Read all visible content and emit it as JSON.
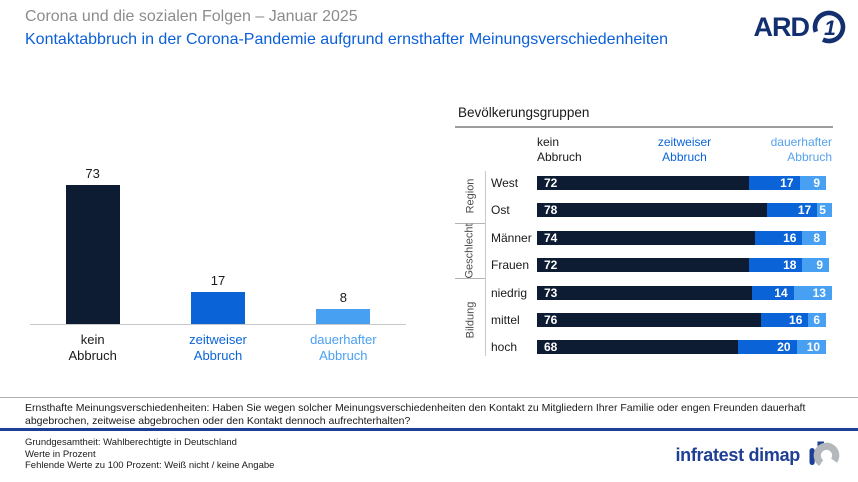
{
  "header": {
    "kicker": "Corona und die sozialen Folgen – Januar 2025",
    "title": "Kontaktabbruch in der Corona-Pandemie aufgrund ernsthafter Meinungsverschiedenheiten",
    "ard_logo_text": "ARD",
    "ard_logo_digit": "1"
  },
  "colors": {
    "kicker_gray": "#8c8c8c",
    "title_blue": "#0b5fd9",
    "segments": [
      "#0d1b33",
      "#0a64d8",
      "#47a0f2"
    ],
    "label_colors": [
      "#1a1a1a",
      "#0a64d8",
      "#4aa0f2"
    ],
    "header_colors": [
      "#1a1a1a",
      "#0a64d8",
      "#55a2ee"
    ],
    "brand_navy": "#1e3f94",
    "ard_navy": "#12306f"
  },
  "left_chart": {
    "bars": [
      {
        "label": "kein\nAbbruch",
        "value": 73
      },
      {
        "label": "zeitweiser\nAbbruch",
        "value": 17
      },
      {
        "label": "dauerhafter\nAbbruch",
        "value": 8
      }
    ]
  },
  "table": {
    "title": "Bevölkerungsgruppen",
    "col_headers": [
      "kein\nAbbruch",
      "zeitweiser\nAbbruch",
      "dauerhafter\nAbbruch"
    ],
    "groups": [
      {
        "label": "Region",
        "rows": [
          {
            "label": "West",
            "values": [
              72,
              17,
              9
            ]
          },
          {
            "label": "Ost",
            "values": [
              78,
              17,
              5
            ]
          }
        ]
      },
      {
        "label": "Geschlecht",
        "rows": [
          {
            "label": "Männer",
            "values": [
              74,
              16,
              8
            ]
          },
          {
            "label": "Frauen",
            "values": [
              72,
              18,
              9
            ]
          }
        ]
      },
      {
        "label": "Bildung",
        "rows": [
          {
            "label": "niedrig",
            "values": [
              73,
              14,
              13
            ]
          },
          {
            "label": "mittel",
            "values": [
              76,
              16,
              6
            ]
          },
          {
            "label": "hoch",
            "values": [
              68,
              20,
              10
            ]
          }
        ]
      }
    ]
  },
  "footnote": "Ernsthafte Meinungsverschiedenheiten: Haben Sie wegen solcher Meinungsverschiedenheiten den Kontakt zu Mitgliedern Ihrer Familie oder engen Freunden dauerhaft abgebrochen, zeitweise abgebrochen oder den Kontakt dennoch aufrechterhalten?",
  "source": {
    "lines": [
      "Grundgesamtheit: Wahlberechtigte in Deutschland",
      "Werte in Prozent",
      "Fehlende Werte zu 100 Prozent: Weiß nicht / keine Angabe"
    ],
    "logo_text": "infratest dimap"
  },
  "chart_data": [
    {
      "type": "bar",
      "title": "Kontaktabbruch in der Corona-Pandemie aufgrund ernsthafter Meinungsverschiedenheiten",
      "categories": [
        "kein Abbruch",
        "zeitweiser Abbruch",
        "dauerhafter Abbruch"
      ],
      "values": [
        73,
        17,
        8
      ],
      "xlabel": "",
      "ylabel": "Werte in Prozent",
      "ylim": [
        0,
        100
      ],
      "grid": false,
      "legend_position": "none"
    },
    {
      "type": "bar",
      "subtype": "horizontal-stacked",
      "title": "Bevölkerungsgruppen",
      "categories": [
        "West",
        "Ost",
        "Männer",
        "Frauen",
        "niedrig",
        "mittel",
        "hoch"
      ],
      "category_groups": [
        "Region",
        "Region",
        "Geschlecht",
        "Geschlecht",
        "Bildung",
        "Bildung",
        "Bildung"
      ],
      "series": [
        {
          "name": "kein Abbruch",
          "values": [
            72,
            78,
            74,
            72,
            73,
            76,
            68
          ]
        },
        {
          "name": "zeitweiser Abbruch",
          "values": [
            17,
            17,
            16,
            18,
            14,
            16,
            20
          ]
        },
        {
          "name": "dauerhafter Abbruch",
          "values": [
            9,
            5,
            8,
            9,
            13,
            6,
            10
          ]
        }
      ],
      "xlim": [
        0,
        100
      ],
      "grid": false,
      "legend_position": "top"
    }
  ]
}
